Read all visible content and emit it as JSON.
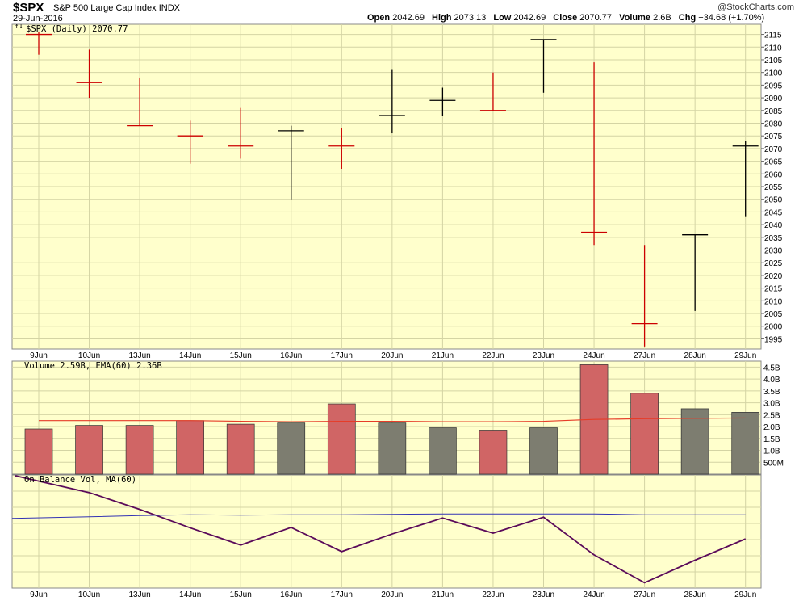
{
  "header": {
    "symbol": "$SPX",
    "name": "S&P 500 Large Cap Index",
    "exchange": "INDX",
    "date": "29-Jun-2016",
    "credit": "@StockCharts.com",
    "open_label": "Open",
    "open": "2042.69",
    "high_label": "High",
    "high": "2073.13",
    "low_label": "Low",
    "low": "2042.69",
    "close_label": "Close",
    "close": "2070.77",
    "volume_label": "Volume",
    "volume": "2.6B",
    "chg_label": "Chg",
    "chg": "+34.68 (+1.70%)"
  },
  "panels": {
    "price_label": "$SPX (Daily) 2070.77",
    "volume_label": "Volume 2.59B, EMA(60) 2.36B",
    "obv_label": "On Balance Vol, MA(60)"
  },
  "colors": {
    "background": "#FFFFCC",
    "grid": "#D4D4A4",
    "up": "#000000",
    "down": "#CC0000",
    "vol_up": "#7D7D70",
    "vol_down": "#D06565",
    "ema": "#E63C28",
    "obv": "#5A0A5A",
    "obv_ma": "#3232B4"
  },
  "chart_data": [
    {
      "type": "ohlc",
      "categories": [
        "9Jun",
        "10Jun",
        "13Jun",
        "14Jun",
        "15Jun",
        "16Jun",
        "17Jun",
        "20Jun",
        "21Jun",
        "22Jun",
        "23Jun",
        "24Jun",
        "27Jun",
        "28Jun",
        "29Jun"
      ],
      "series": [
        {
          "high": 2116,
          "low": 2107,
          "close": 2115,
          "direction": "down"
        },
        {
          "high": 2109,
          "low": 2090,
          "close": 2096,
          "direction": "down"
        },
        {
          "high": 2098,
          "low": 2079,
          "close": 2079,
          "direction": "down"
        },
        {
          "high": 2081,
          "low": 2064,
          "close": 2075,
          "direction": "down"
        },
        {
          "high": 2086,
          "low": 2066,
          "close": 2071,
          "direction": "down"
        },
        {
          "high": 2079,
          "low": 2050,
          "close": 2077,
          "direction": "up"
        },
        {
          "high": 2078,
          "low": 2062,
          "close": 2071,
          "direction": "down"
        },
        {
          "high": 2101,
          "low": 2076,
          "close": 2083,
          "direction": "up"
        },
        {
          "high": 2094,
          "low": 2083,
          "close": 2089,
          "direction": "up"
        },
        {
          "high": 2100,
          "low": 2085,
          "close": 2085,
          "direction": "down"
        },
        {
          "high": 2113,
          "low": 2092,
          "close": 2113,
          "direction": "up"
        },
        {
          "high": 2104,
          "low": 2032,
          "close": 2037,
          "direction": "down"
        },
        {
          "high": 2032,
          "low": 1992,
          "close": 2001,
          "direction": "down"
        },
        {
          "high": 2036,
          "low": 2006,
          "close": 2036,
          "direction": "up"
        },
        {
          "high": 2073,
          "low": 2043,
          "close": 2071,
          "direction": "up"
        }
      ],
      "ylim": [
        1991,
        2119
      ],
      "yticks": [
        1995,
        2000,
        2005,
        2010,
        2015,
        2020,
        2025,
        2030,
        2035,
        2040,
        2045,
        2050,
        2055,
        2060,
        2065,
        2070,
        2075,
        2080,
        2085,
        2090,
        2095,
        2100,
        2105,
        2110,
        2115
      ],
      "grid": true
    },
    {
      "type": "bar",
      "title": "Volume 2.59B, EMA(60) 2.36B",
      "categories": [
        "9Jun",
        "10Jun",
        "13Jun",
        "14Jun",
        "15Jun",
        "16Jun",
        "17Jun",
        "20Jun",
        "21Jun",
        "22Jun",
        "23Jun",
        "24Jun",
        "27Jun",
        "28Jun",
        "29Jun"
      ],
      "values": [
        1.9,
        2.05,
        2.05,
        2.25,
        2.1,
        2.15,
        2.95,
        2.15,
        1.95,
        1.85,
        1.95,
        4.6,
        3.4,
        2.75,
        2.6
      ],
      "direction": [
        "down",
        "down",
        "down",
        "down",
        "down",
        "up",
        "down",
        "up",
        "up",
        "down",
        "up",
        "down",
        "down",
        "up",
        "up"
      ],
      "ema": [
        2.25,
        2.25,
        2.25,
        2.25,
        2.22,
        2.2,
        2.22,
        2.22,
        2.2,
        2.2,
        2.22,
        2.3,
        2.33,
        2.35,
        2.36
      ],
      "ylim": [
        0,
        4.75
      ],
      "yticks": [
        0.5,
        1.0,
        1.5,
        2.0,
        2.5,
        3.0,
        3.5,
        4.0,
        4.5
      ],
      "ytick_labels": [
        "500M",
        "1.0B",
        "1.5B",
        "2.0B",
        "2.5B",
        "3.0B",
        "3.5B",
        "4.0B",
        "4.5B"
      ]
    },
    {
      "type": "line",
      "title": "On Balance Vol, MA(60)",
      "categories": [
        "9Jun",
        "10Jun",
        "13Jun",
        "14Jun",
        "15Jun",
        "16Jun",
        "17Jun",
        "20Jun",
        "21Jun",
        "22Jun",
        "23Jun",
        "24Jun",
        "27Jun",
        "28Jun",
        "29Jun"
      ],
      "series": [
        {
          "values": [
            1.9,
            -0.15,
            -2.2,
            -4.45,
            -6.55,
            -4.4,
            -7.35,
            -5.2,
            -3.25,
            -5.1,
            -3.15,
            -7.75,
            -11.15,
            -8.4,
            -5.8
          ]
        },
        {
          "values": [
            -3.3,
            -3.1,
            -2.95,
            -2.85,
            -2.9,
            -2.85,
            -2.85,
            -2.8,
            -2.75,
            -2.75,
            -2.75,
            -2.75,
            -2.85,
            -2.85,
            -2.85
          ]
        }
      ],
      "ylim": [
        -11.8,
        2.0
      ],
      "grid": true
    }
  ]
}
